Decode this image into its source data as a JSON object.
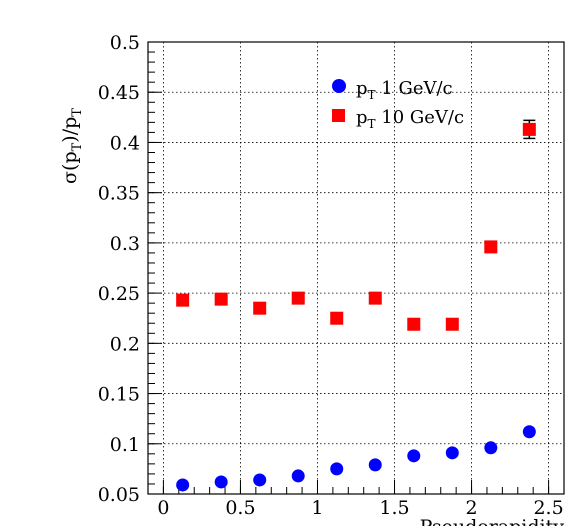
{
  "chart_data": {
    "type": "scatter",
    "title": "",
    "xlabel": "Pseudorapidity",
    "ylabel": "σ(p_T)/p_T",
    "xlim": [
      -0.1,
      2.6
    ],
    "ylim": [
      0.05,
      0.5
    ],
    "xticks": [
      "0",
      "0.5",
      "1",
      "1.5",
      "2",
      "2.5"
    ],
    "yticks": [
      "0.05",
      "0.1",
      "0.15",
      "0.2",
      "0.25",
      "0.3",
      "0.35",
      "0.4",
      "0.45",
      "0.5"
    ],
    "grid": true,
    "legend_position": "top-right",
    "series": [
      {
        "name": "p_T 1 GeV/c",
        "marker": "circle",
        "color": "#0000ff",
        "x": [
          0.125,
          0.375,
          0.625,
          0.875,
          1.125,
          1.375,
          1.625,
          1.875,
          2.125,
          2.375
        ],
        "y": [
          0.059,
          0.062,
          0.064,
          0.068,
          0.075,
          0.079,
          0.088,
          0.091,
          0.096,
          0.112
        ]
      },
      {
        "name": "p_T 10 GeV/c",
        "marker": "square",
        "color": "#ff0000",
        "x": [
          0.125,
          0.375,
          0.625,
          0.875,
          1.125,
          1.375,
          1.625,
          1.875,
          2.125,
          2.375
        ],
        "y": [
          0.243,
          0.244,
          0.235,
          0.245,
          0.225,
          0.245,
          0.219,
          0.219,
          0.296,
          0.413
        ],
        "yerr": [
          0,
          0,
          0,
          0,
          0,
          0,
          0,
          0,
          0,
          0.009
        ]
      }
    ]
  }
}
